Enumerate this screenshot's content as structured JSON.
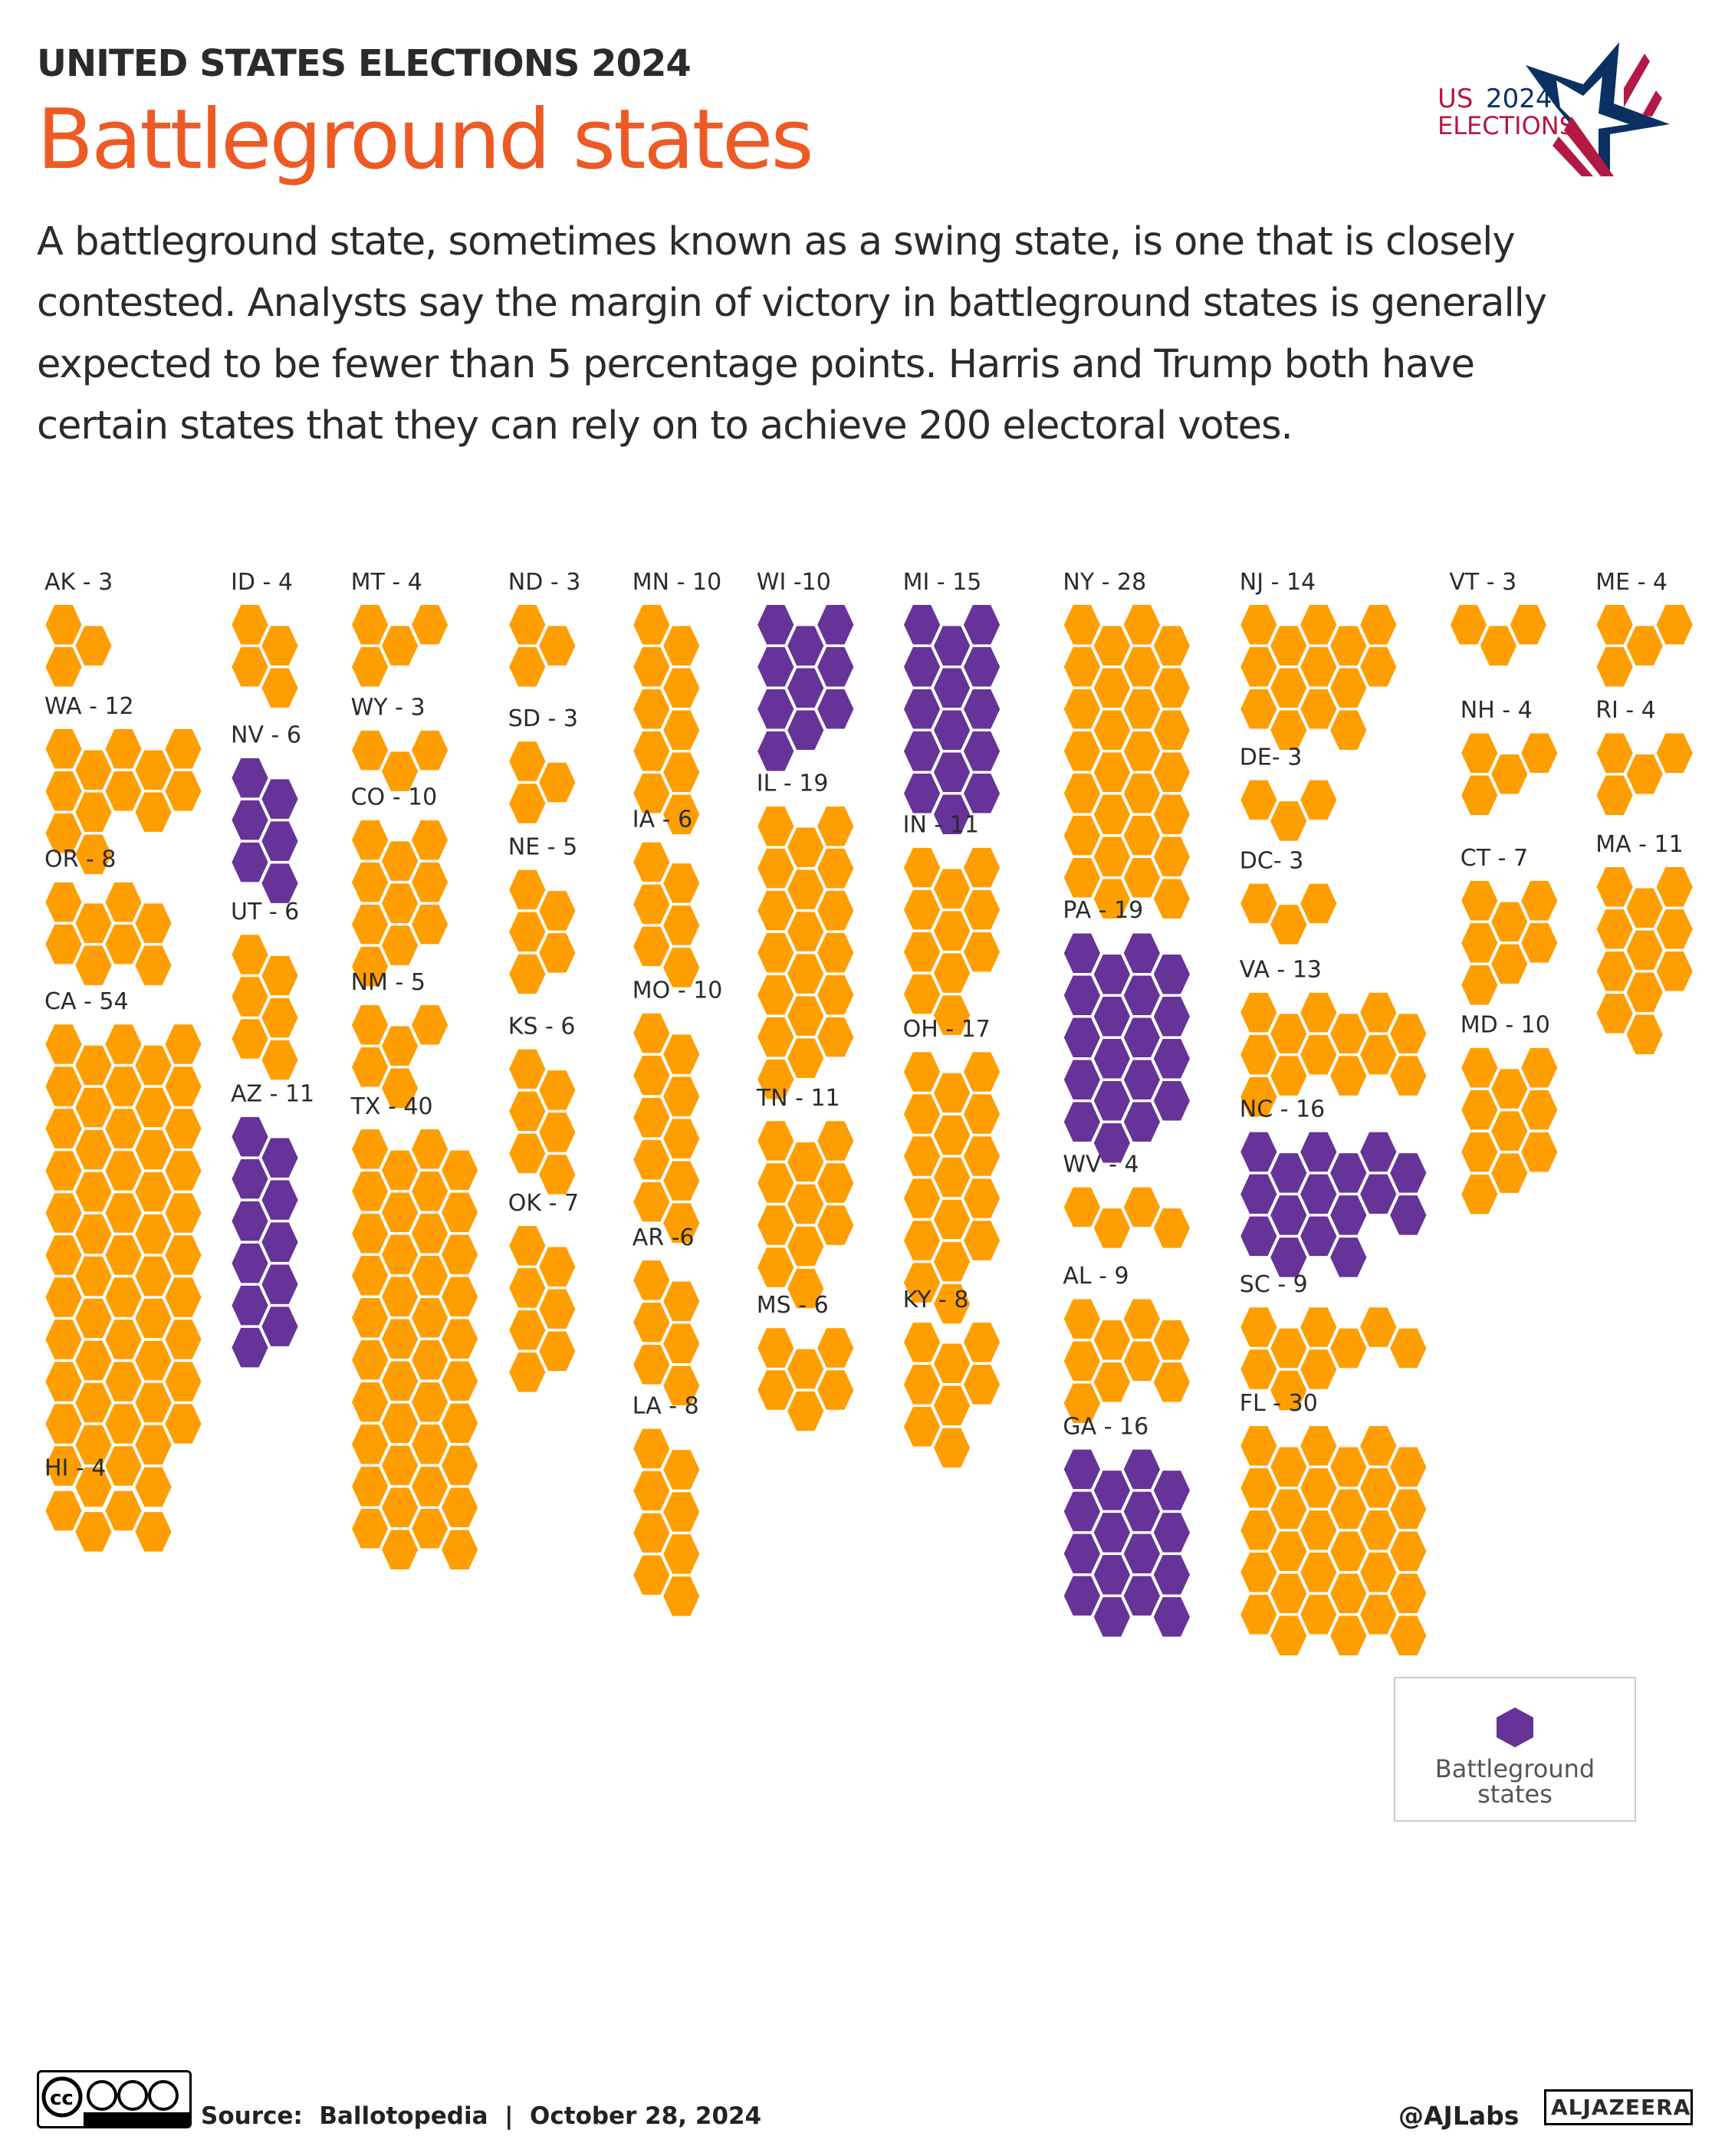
{
  "header": {
    "kicker": "UNITED STATES ELECTIONS 2024",
    "title": "Battleground states",
    "description": "A battleground state, sometimes known as a swing state, is one that is closely contested. Analysts say the margin of victory in battleground states is generally expected to be fewer than 5 percentage points. Harris and Trump both have certain states that they can rely on to achieve 200 electoral votes.",
    "logo_text_1": "US",
    "logo_text_2": "2024",
    "logo_text_3": "ELECTIONS"
  },
  "colors": {
    "non_battleground": "#FF9E00",
    "battleground": "#663399",
    "title": "#EE5A24"
  },
  "chart_data": {
    "type": "hexagon-tile",
    "unit": "electoral vote",
    "states": [
      {
        "code": "AK",
        "label": "AK - 3",
        "votes": 3,
        "battleground": false
      },
      {
        "code": "WA",
        "label": "WA - 12",
        "votes": 12,
        "battleground": false
      },
      {
        "code": "OR",
        "label": "OR - 8",
        "votes": 8,
        "battleground": false
      },
      {
        "code": "CA",
        "label": "CA - 54",
        "votes": 54,
        "battleground": false
      },
      {
        "code": "HI",
        "label": "HI - 4",
        "votes": 4,
        "battleground": false
      },
      {
        "code": "ID",
        "label": "ID - 4",
        "votes": 4,
        "battleground": false
      },
      {
        "code": "NV",
        "label": "NV - 6",
        "votes": 6,
        "battleground": true
      },
      {
        "code": "UT",
        "label": "UT - 6",
        "votes": 6,
        "battleground": false
      },
      {
        "code": "AZ",
        "label": "AZ - 11",
        "votes": 11,
        "battleground": true
      },
      {
        "code": "MT",
        "label": "MT - 4",
        "votes": 4,
        "battleground": false
      },
      {
        "code": "WY",
        "label": "WY - 3",
        "votes": 3,
        "battleground": false
      },
      {
        "code": "CO",
        "label": "CO - 10",
        "votes": 10,
        "battleground": false
      },
      {
        "code": "NM",
        "label": "NM - 5",
        "votes": 5,
        "battleground": false
      },
      {
        "code": "TX",
        "label": "TX - 40",
        "votes": 40,
        "battleground": false
      },
      {
        "code": "ND",
        "label": "ND - 3",
        "votes": 3,
        "battleground": false
      },
      {
        "code": "SD",
        "label": "SD - 3",
        "votes": 3,
        "battleground": false
      },
      {
        "code": "NE",
        "label": "NE - 5",
        "votes": 5,
        "battleground": false
      },
      {
        "code": "KS",
        "label": "KS - 6",
        "votes": 6,
        "battleground": false
      },
      {
        "code": "OK",
        "label": "OK - 7",
        "votes": 7,
        "battleground": false
      },
      {
        "code": "MN",
        "label": "MN - 10",
        "votes": 10,
        "battleground": false
      },
      {
        "code": "IA",
        "label": "IA - 6",
        "votes": 6,
        "battleground": false
      },
      {
        "code": "MO",
        "label": "MO - 10",
        "votes": 10,
        "battleground": false
      },
      {
        "code": "AR",
        "label": "AR -6",
        "votes": 6,
        "battleground": false
      },
      {
        "code": "LA",
        "label": "LA - 8",
        "votes": 8,
        "battleground": false
      },
      {
        "code": "WI",
        "label": "WI -10",
        "votes": 10,
        "battleground": true
      },
      {
        "code": "IL",
        "label": "IL - 19",
        "votes": 19,
        "battleground": false
      },
      {
        "code": "TN",
        "label": "TN - 11",
        "votes": 11,
        "battleground": false
      },
      {
        "code": "MS",
        "label": "MS - 6",
        "votes": 6,
        "battleground": false
      },
      {
        "code": "MI",
        "label": "MI - 15",
        "votes": 15,
        "battleground": true
      },
      {
        "code": "IN",
        "label": "IN - 11",
        "votes": 11,
        "battleground": false
      },
      {
        "code": "OH",
        "label": "OH - 17",
        "votes": 17,
        "battleground": false
      },
      {
        "code": "KY",
        "label": "KY - 8",
        "votes": 8,
        "battleground": false
      },
      {
        "code": "NY",
        "label": "NY - 28",
        "votes": 28,
        "battleground": false
      },
      {
        "code": "PA",
        "label": "PA - 19",
        "votes": 19,
        "battleground": true
      },
      {
        "code": "WV",
        "label": "WV - 4",
        "votes": 4,
        "battleground": false
      },
      {
        "code": "AL",
        "label": "AL - 9",
        "votes": 9,
        "battleground": false
      },
      {
        "code": "GA",
        "label": "GA - 16",
        "votes": 16,
        "battleground": true
      },
      {
        "code": "NJ",
        "label": "NJ - 14",
        "votes": 14,
        "battleground": false
      },
      {
        "code": "DE",
        "label": "DE- 3",
        "votes": 3,
        "battleground": false
      },
      {
        "code": "DC",
        "label": "DC- 3",
        "votes": 3,
        "battleground": false
      },
      {
        "code": "VA",
        "label": "VA - 13",
        "votes": 13,
        "battleground": false
      },
      {
        "code": "NC",
        "label": "NC - 16",
        "votes": 16,
        "battleground": true
      },
      {
        "code": "SC",
        "label": "SC - 9",
        "votes": 9,
        "battleground": false
      },
      {
        "code": "FL",
        "label": "FL - 30",
        "votes": 30,
        "battleground": false
      },
      {
        "code": "VT",
        "label": "VT - 3",
        "votes": 3,
        "battleground": false
      },
      {
        "code": "NH",
        "label": "NH - 4",
        "votes": 4,
        "battleground": false
      },
      {
        "code": "CT",
        "label": "CT - 7",
        "votes": 7,
        "battleground": false
      },
      {
        "code": "MD",
        "label": "MD - 10",
        "votes": 10,
        "battleground": false
      },
      {
        "code": "ME",
        "label": "ME - 4",
        "votes": 4,
        "battleground": false
      },
      {
        "code": "RI",
        "label": "RI - 4",
        "votes": 4,
        "battleground": false
      },
      {
        "code": "MA",
        "label": "MA - 11",
        "votes": 11,
        "battleground": false
      }
    ],
    "legend": [
      {
        "label": "Battleground states",
        "color": "#663399"
      }
    ]
  },
  "legend": {
    "label": "Battleground states"
  },
  "footer": {
    "license_icon": "cc-by-nc-sa-icon",
    "source": "Source:  Ballotopedia  |  October 28, 2024",
    "handle": "@AJLabs",
    "brand": "ALJAZEERA"
  }
}
